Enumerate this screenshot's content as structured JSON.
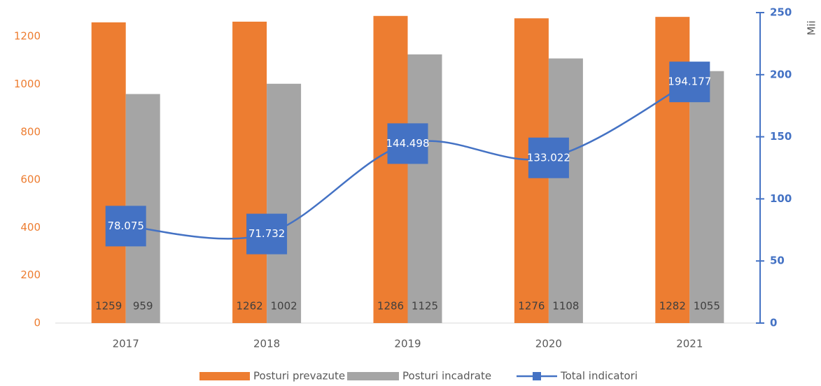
{
  "chart_data": {
    "type": "bar-line",
    "categories": [
      "2017",
      "2018",
      "2019",
      "2020",
      "2021"
    ],
    "series": [
      {
        "name": "Posturi prevazute",
        "color": "#ED7D31",
        "type": "bar",
        "values": [
          1259,
          1262,
          1286,
          1276,
          1282
        ]
      },
      {
        "name": "Posturi incadrate",
        "color": "#A5A5A5",
        "type": "bar",
        "values": [
          959,
          1002,
          1125,
          1108,
          1055
        ]
      },
      {
        "name": "Total indicatori",
        "color": "#4472C4",
        "type": "line",
        "axis": "y2",
        "values": [
          78.075,
          71.732,
          144.498,
          133.022,
          194.177
        ]
      }
    ],
    "ylim": [
      0,
      1300
    ],
    "yticks": [
      0,
      200,
      400,
      600,
      800,
      1000,
      1200
    ],
    "y2lim": [
      0,
      250
    ],
    "y2ticks": [
      0,
      50,
      100,
      150,
      200,
      250
    ],
    "y2label": "Mii",
    "legend": "bottom"
  }
}
